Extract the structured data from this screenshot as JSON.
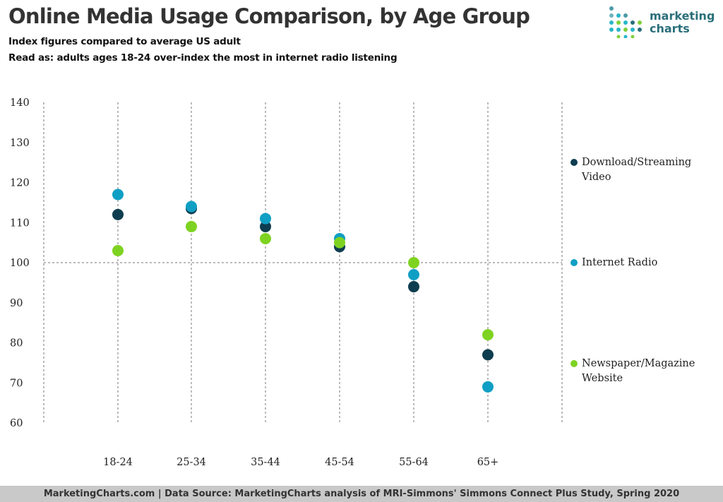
{
  "title": "Online Media Usage Comparison, by Age Group",
  "subtitles": [
    "Index figures compared to average US adult",
    "Read as: adults ages 18-24 over-index the most in internet radio listening"
  ],
  "logo": {
    "line1": "marketing",
    "line2": "charts"
  },
  "footer": "MarketingCharts.com | Data Source: MarketingCharts analysis of MRI-Simmons' Simmons Connect Plus Study, Spring 2020",
  "chart_data": {
    "type": "scatter",
    "title": "Online Media Usage Comparison, by Age Group",
    "categories": [
      "18-24",
      "25-34",
      "35-44",
      "45-54",
      "55-64",
      "65+"
    ],
    "ylim": [
      60,
      140
    ],
    "yticks": [
      60,
      70,
      80,
      90,
      100,
      110,
      120,
      130,
      140
    ],
    "reference_line": 100,
    "grid": "vertical dashed",
    "legend_position": "right",
    "series": [
      {
        "name": "Download/Streaming Video",
        "color": "#0e3d4f",
        "values": [
          112,
          113.5,
          109,
          104,
          94,
          77
        ]
      },
      {
        "name": "Internet Radio",
        "color": "#109fc4",
        "values": [
          117,
          114,
          111,
          106,
          97,
          69
        ]
      },
      {
        "name": "Newspaper/Magazine Website",
        "color": "#7ed321",
        "values": [
          103,
          109,
          106,
          105,
          100,
          82
        ]
      }
    ]
  }
}
